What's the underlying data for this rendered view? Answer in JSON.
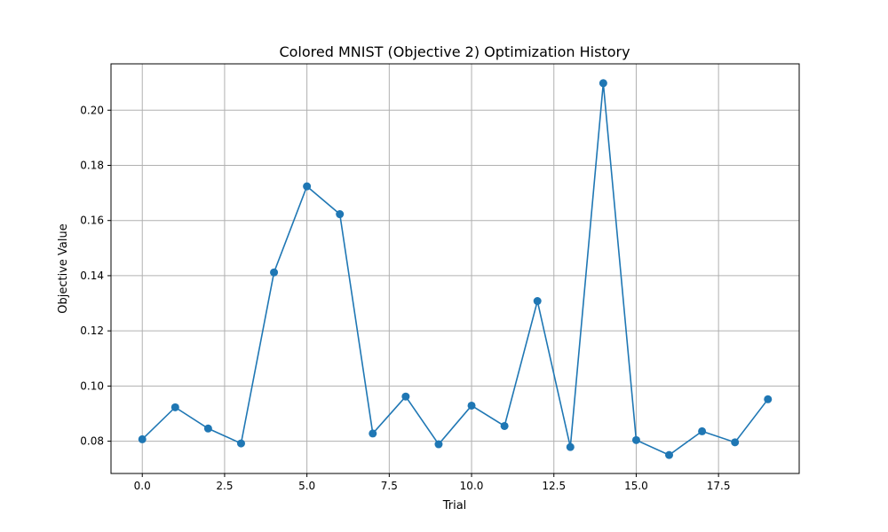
{
  "chart_data": {
    "type": "line",
    "title": "Colored MNIST (Objective 2) Optimization History",
    "xlabel": "Trial",
    "ylabel": "Objective Value",
    "xlim": [
      -0.95,
      19.95
    ],
    "ylim": [
      0.0683,
      0.2168
    ],
    "xticks": [
      0,
      2.5,
      5,
      7.5,
      10,
      12.5,
      15,
      17.5
    ],
    "xtick_labels": [
      "0.0",
      "2.5",
      "5.0",
      "7.5",
      "10.0",
      "12.5",
      "15.0",
      "17.5"
    ],
    "yticks": [
      0.08,
      0.1,
      0.12,
      0.14,
      0.16,
      0.18,
      0.2
    ],
    "ytick_labels": [
      "0.08",
      "0.10",
      "0.12",
      "0.14",
      "0.16",
      "0.18",
      "0.20"
    ],
    "grid": true,
    "color": "#1f77b4",
    "x": [
      0,
      1,
      2,
      3,
      4,
      5,
      6,
      7,
      8,
      9,
      10,
      11,
      12,
      13,
      14,
      15,
      16,
      17,
      18,
      19
    ],
    "series": [
      {
        "values": [
          0.0807,
          0.0923,
          0.0846,
          0.0792,
          0.1412,
          0.1724,
          0.1623,
          0.0828,
          0.0962,
          0.0789,
          0.0929,
          0.0855,
          0.1308,
          0.0779,
          0.2098,
          0.0804,
          0.075,
          0.0836,
          0.0796,
          0.0952
        ]
      }
    ]
  }
}
